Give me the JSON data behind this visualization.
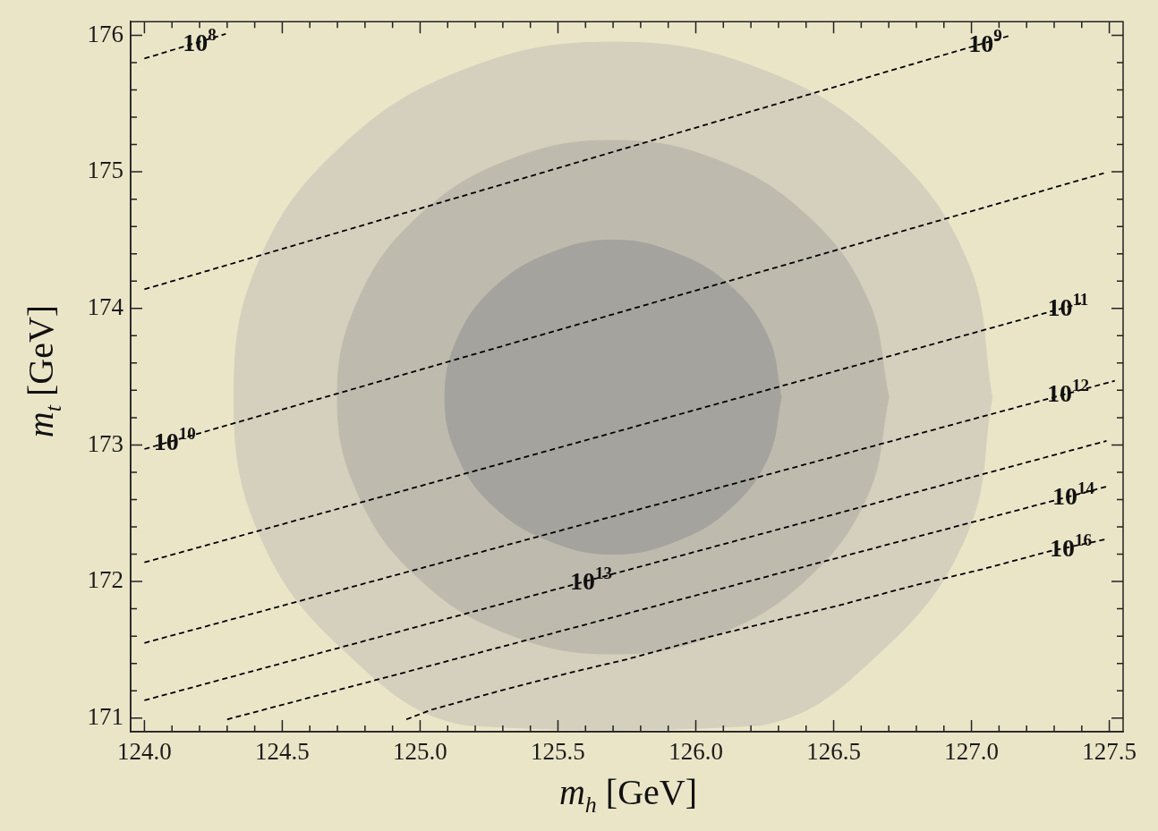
{
  "chart_data": {
    "type": "line",
    "xlabel": "m$_{h}$ [GeV]",
    "ylabel": "m$_{t}$ [GeV]",
    "xlim": [
      123.95,
      127.55
    ],
    "ylim": [
      170.9,
      176.1
    ],
    "xticks": [
      {
        "value": 124,
        "label": "124.0"
      },
      {
        "value": 124.1,
        "label": null
      },
      {
        "value": 124.2,
        "label": null
      },
      {
        "value": 124.3,
        "label": null
      },
      {
        "value": 124.4,
        "label": null
      },
      {
        "value": 124.5,
        "label": "124.5"
      },
      {
        "value": 124.6,
        "label": null
      },
      {
        "value": 124.7,
        "label": null
      },
      {
        "value": 124.8,
        "label": null
      },
      {
        "value": 124.9,
        "label": null
      },
      {
        "value": 125,
        "label": "125.0"
      },
      {
        "value": 125.1,
        "label": null
      },
      {
        "value": 125.2,
        "label": null
      },
      {
        "value": 125.3,
        "label": null
      },
      {
        "value": 125.4,
        "label": null
      },
      {
        "value": 125.5,
        "label": "125.5"
      },
      {
        "value": 125.6,
        "label": null
      },
      {
        "value": 125.7,
        "label": null
      },
      {
        "value": 125.8,
        "label": null
      },
      {
        "value": 125.9,
        "label": null
      },
      {
        "value": 126,
        "label": "126.0"
      },
      {
        "value": 126.1,
        "label": null
      },
      {
        "value": 126.2,
        "label": null
      },
      {
        "value": 126.3,
        "label": null
      },
      {
        "value": 126.4,
        "label": null
      },
      {
        "value": 126.5,
        "label": "126.5"
      },
      {
        "value": 126.6,
        "label": null
      },
      {
        "value": 126.7,
        "label": null
      },
      {
        "value": 126.8,
        "label": null
      },
      {
        "value": 126.9,
        "label": null
      },
      {
        "value": 127,
        "label": "127.0"
      },
      {
        "value": 127.1,
        "label": null
      },
      {
        "value": 127.2,
        "label": null
      },
      {
        "value": 127.3,
        "label": null
      },
      {
        "value": 127.4,
        "label": null
      },
      {
        "value": 127.5,
        "label": "127.5"
      }
    ],
    "yticks": [
      171,
      {
        "value": 171.2,
        "label": null
      },
      {
        "value": 171.4,
        "label": null
      },
      {
        "value": 171.6,
        "label": null
      },
      {
        "value": 171.8,
        "label": null
      },
      172,
      {
        "value": 172.2,
        "label": null
      },
      {
        "value": 172.4,
        "label": null
      },
      {
        "value": 172.6,
        "label": null
      },
      {
        "value": 172.8,
        "label": null
      },
      173,
      {
        "value": 173.2,
        "label": null
      },
      {
        "value": 173.4,
        "label": null
      },
      {
        "value": 173.6,
        "label": null
      },
      {
        "value": 173.8,
        "label": null
      },
      174,
      {
        "value": 174.2,
        "label": null
      },
      {
        "value": 174.4,
        "label": null
      },
      {
        "value": 174.6,
        "label": null
      },
      {
        "value": 174.8,
        "label": null
      },
      175,
      {
        "value": 175.2,
        "label": null
      },
      {
        "value": 175.4,
        "label": null
      },
      {
        "value": 175.6,
        "label": null
      },
      {
        "value": 175.8,
        "label": null
      },
      176
    ],
    "grid": false,
    "legend": false,
    "marker": "none",
    "series": [
      {
        "type": "area",
        "color": "#d4d0bd",
        "x": [
          127.075,
          126.985,
          126.685,
          126.235,
          125.7,
          125.165,
          124.715,
          124.415,
          124.325,
          124.415,
          124.715,
          125.165,
          126.235,
          126.685,
          126.985,
          127.075
        ],
        "values": [
          173.35,
          174.345,
          175.188,
          175.752,
          175.95,
          175.752,
          175.188,
          174.345,
          173.35,
          172.355,
          171.512,
          170.948,
          170.948,
          171.512,
          172.355,
          173.35
        ]
      },
      {
        "type": "area",
        "color": "#bebbae",
        "x": [
          126.7,
          126.623,
          126.404,
          126.077,
          125.7,
          125.323,
          124.996,
          124.777,
          124.7,
          124.777,
          124.996,
          125.323,
          125.7,
          126.077,
          126.404,
          126.623,
          126.7
        ],
        "values": [
          173.35,
          174.069,
          174.679,
          175.087,
          175.23,
          175.087,
          174.679,
          174.069,
          173.35,
          172.631,
          172.021,
          171.613,
          171.47,
          171.613,
          172.021,
          172.631,
          173.35
        ]
      },
      {
        "type": "area",
        "color": "#a4a39d",
        "x": [
          126.31,
          126.263,
          126.13,
          125.93,
          125.7,
          125.47,
          125.27,
          125.137,
          125.09,
          125.137,
          125.27,
          125.47,
          125.7,
          125.93,
          126.13,
          126.263,
          126.31
        ],
        "values": [
          173.35,
          173.786,
          174.156,
          174.403,
          174.5,
          174.403,
          174.156,
          173.786,
          173.35,
          172.914,
          172.544,
          172.297,
          172.2,
          172.297,
          172.544,
          172.914,
          173.35
        ]
      },
      {
        "color": "#000000",
        "line_style": "dashed",
        "x": [
          124.0,
          124.295
        ],
        "values": [
          175.83,
          176.01
        ]
      },
      {
        "color": "#000000",
        "line_style": "dashed",
        "x": [
          124.0,
          127.143
        ],
        "values": [
          174.14,
          176.0
        ]
      },
      {
        "color": "#000000",
        "line_style": "dashed",
        "x": [
          124.0,
          127.48
        ],
        "values": [
          172.97,
          174.99
        ]
      },
      {
        "color": "#000000",
        "line_style": "dashed",
        "x": [
          124.0,
          127.4
        ],
        "values": [
          172.14,
          174.04
        ]
      },
      {
        "color": "#000000",
        "line_style": "dashed",
        "x": [
          124.0,
          127.52
        ],
        "values": [
          171.55,
          173.47
        ]
      },
      {
        "color": "#000000",
        "line_style": "dashed",
        "x": [
          124.0,
          127.49
        ],
        "values": [
          171.13,
          173.03
        ]
      },
      {
        "color": "#000000",
        "line_style": "dashed",
        "x": [
          124.3,
          127.5
        ],
        "values": [
          170.99,
          172.7
        ]
      },
      {
        "color": "#000000",
        "line_style": "dashed",
        "x": [
          124.95,
          125.04,
          125.29,
          125.56,
          125.75,
          126.04,
          126.3,
          126.51,
          126.79,
          127.04,
          127.28,
          127.49
        ],
        "values": [
          170.99,
          171.06,
          171.2,
          171.34,
          171.43,
          171.59,
          171.72,
          171.82,
          171.97,
          172.09,
          172.22,
          172.31
        ]
      }
    ],
    "annotations": [
      {
        "text": "10$^{8}$",
        "x": 124.2,
        "y": 175.95
      },
      {
        "text": "10$^{9}$",
        "x": 127.05,
        "y": 175.945
      },
      {
        "text": "10$^{10}$",
        "x": 124.11,
        "y": 173.03
      },
      {
        "text": "10$^{11}$",
        "x": 127.35,
        "y": 174.01
      },
      {
        "text": "10$^{12}$",
        "x": 127.35,
        "y": 173.38
      },
      {
        "text": "10$^{13}$",
        "x": 125.62,
        "y": 172.01
      },
      {
        "text": "10$^{14}$",
        "x": 127.37,
        "y": 172.63
      },
      {
        "text": "10$^{16}$",
        "x": 127.36,
        "y": 172.25
      }
    ]
  }
}
